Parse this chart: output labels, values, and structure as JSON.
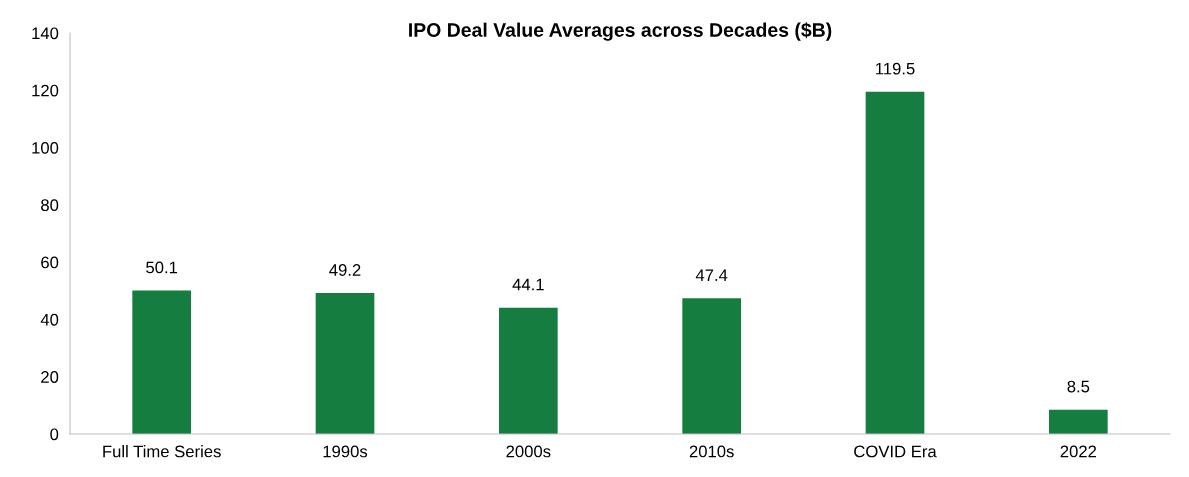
{
  "chart_data": {
    "type": "bar",
    "title": "IPO Deal Value Averages across Decades ($B)",
    "categories": [
      "Full Time Series",
      "1990s",
      "2000s",
      "2010s",
      "COVID Era",
      "2022"
    ],
    "values": [
      50.1,
      49.2,
      44.1,
      47.4,
      119.5,
      8.5
    ],
    "color": "#147d3f",
    "ylim": [
      0,
      140
    ],
    "yticks": [
      0,
      20,
      40,
      60,
      80,
      100,
      120,
      140
    ],
    "grid": false,
    "data_labels": true
  }
}
